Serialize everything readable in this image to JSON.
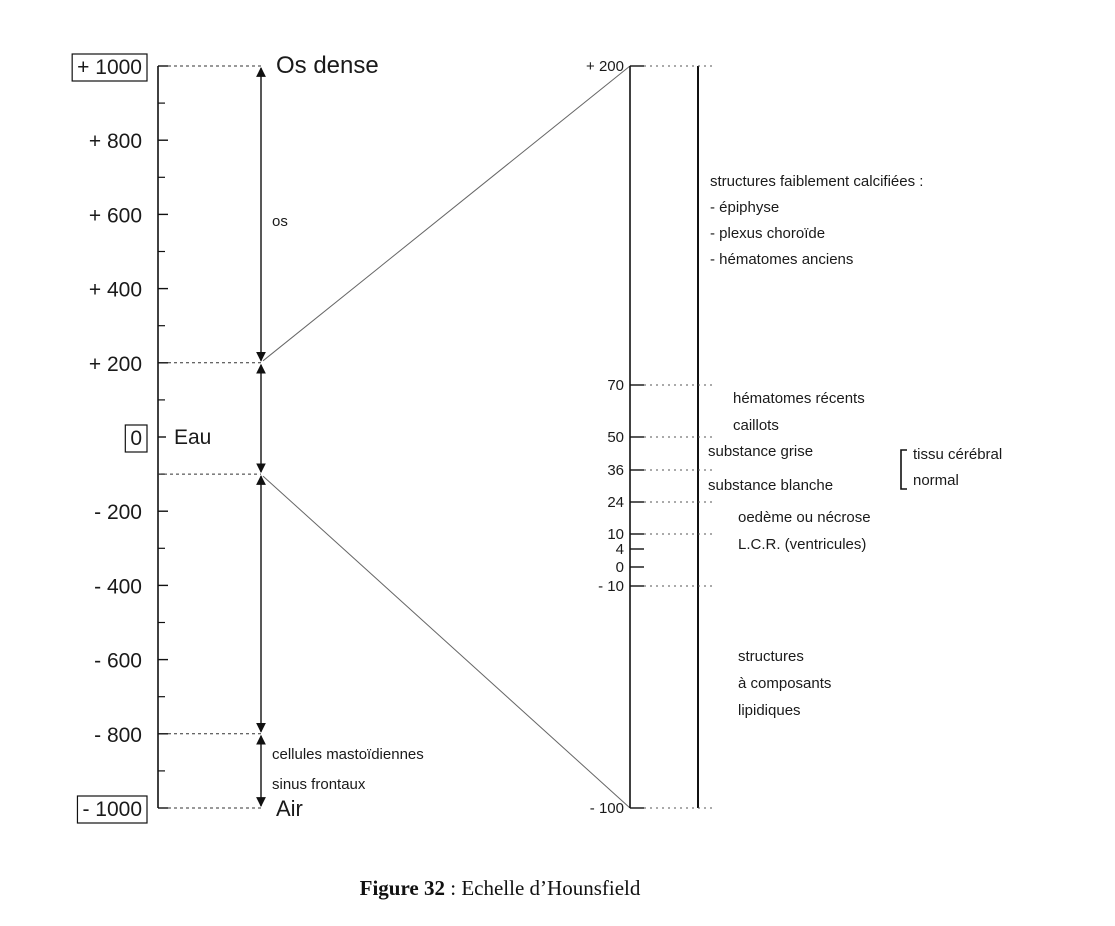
{
  "left_scale": {
    "ticks": [
      {
        "value": 1000,
        "label": "+ 1000",
        "boxed": true
      },
      {
        "value": 800,
        "label": "+ 800",
        "boxed": false
      },
      {
        "value": 600,
        "label": "+ 600",
        "boxed": false
      },
      {
        "value": 400,
        "label": "+ 400",
        "boxed": false
      },
      {
        "value": 200,
        "label": "+ 200",
        "boxed": false
      },
      {
        "value": 0,
        "label": "0",
        "boxed": true
      },
      {
        "value": -200,
        "label": "- 200",
        "boxed": false
      },
      {
        "value": -400,
        "label": "- 400",
        "boxed": false
      },
      {
        "value": -600,
        "label": "- 600",
        "boxed": false
      },
      {
        "value": -800,
        "label": "- 800",
        "boxed": false
      },
      {
        "value": -1000,
        "label": "- 1000",
        "boxed": true
      }
    ],
    "labels": {
      "os_dense": "Os dense",
      "os": "os",
      "eau": "Eau",
      "air": "Air",
      "cellules": "cellules mastoïdiennes",
      "sinus": "sinus frontaux"
    },
    "ranges": [
      {
        "from": 1000,
        "to": 200
      },
      {
        "from": 200,
        "to": -100
      },
      {
        "from": -100,
        "to": -800
      },
      {
        "from": -800,
        "to": -1000
      }
    ]
  },
  "zoom": {
    "from": 200,
    "to": -100
  },
  "right_scale": {
    "ticks": [
      {
        "value": 200,
        "label": "+ 200"
      },
      {
        "value": 70,
        "label": "70"
      },
      {
        "value": 50,
        "label": "50"
      },
      {
        "value": 36,
        "label": "36"
      },
      {
        "value": 24,
        "label": "24"
      },
      {
        "value": 10,
        "label": "10"
      },
      {
        "value": 4,
        "label": "4"
      },
      {
        "value": 0,
        "label": "0"
      },
      {
        "value": -10,
        "label": "- 10"
      },
      {
        "value": -100,
        "label": "- 100"
      }
    ],
    "calcified": {
      "title": "structures faiblement calcifiées :",
      "items": [
        "- épiphyse",
        "- plexus choroïde",
        "- hématomes anciens"
      ]
    },
    "hematomes_recents": "hématomes récents",
    "caillots": "caillots",
    "substance_grise": "substance grise",
    "substance_blanche": "substance blanche",
    "tissu_cerebral": "tissu cérébral",
    "normal": "normal",
    "oedeme": "oedème ou nécrose",
    "lcr": "L.C.R. (ventricules)",
    "lipidiques": [
      "structures",
      "à composants",
      "lipidiques"
    ]
  },
  "caption": {
    "prefix": "Figure 32",
    "text": " : Echelle d’Hounsfield"
  }
}
